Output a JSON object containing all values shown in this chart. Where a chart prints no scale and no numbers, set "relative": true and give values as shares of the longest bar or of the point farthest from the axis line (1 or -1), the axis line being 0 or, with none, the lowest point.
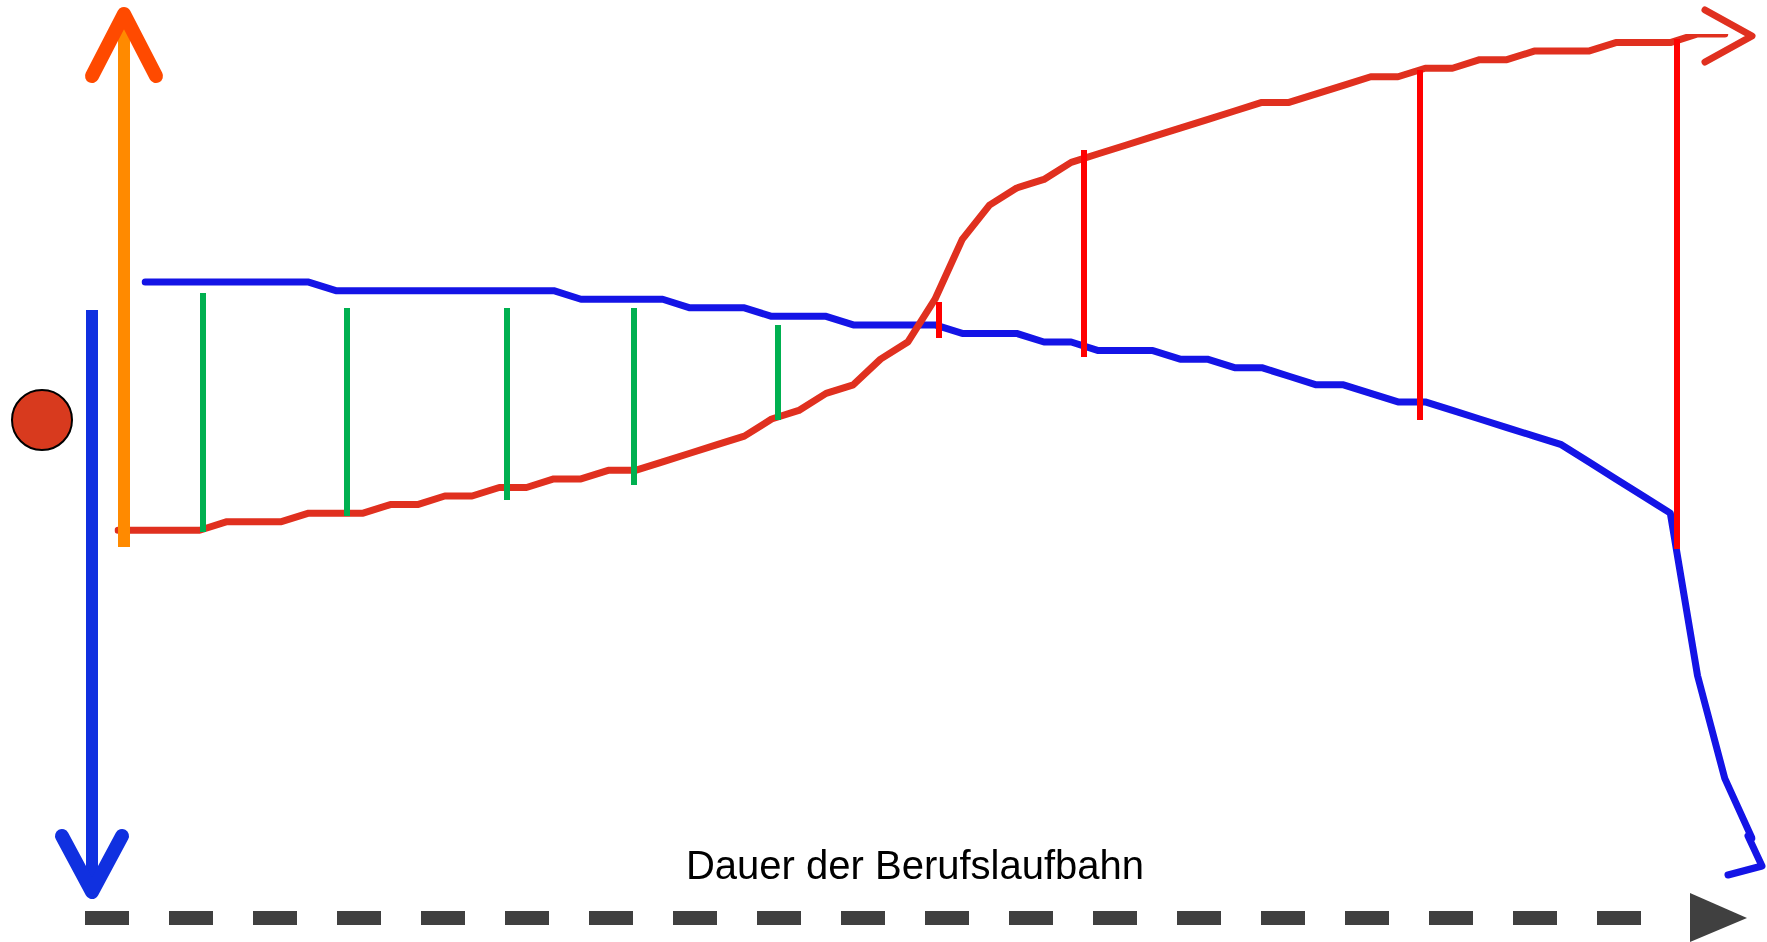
{
  "chart_data": {
    "type": "line",
    "relative": true,
    "xlabel": "Dauer der Berufslaufbahn",
    "legend": false,
    "grid": false,
    "marker": "none",
    "line_style": "solid",
    "categories": [
      null,
      null,
      null,
      null,
      null,
      null,
      null,
      null,
      null,
      null,
      null,
      null,
      null,
      null,
      null,
      null,
      null,
      null,
      null,
      null,
      null,
      null,
      null,
      null,
      null,
      null,
      null,
      null,
      null,
      null,
      null,
      null,
      null,
      null,
      null,
      null,
      null,
      null,
      null,
      null,
      null,
      null,
      null,
      null,
      null,
      null,
      null,
      null,
      null,
      null,
      null,
      null,
      null,
      null,
      null,
      null,
      null,
      null,
      null,
      null,
      null
    ],
    "series": [
      {
        "color": "#e0301f",
        "values": [
          0.42,
          0.42,
          0.42,
          0.42,
          0.43,
          0.43,
          0.43,
          0.44,
          0.44,
          0.44,
          0.45,
          0.45,
          0.46,
          0.46,
          0.47,
          0.47,
          0.48,
          0.48,
          0.49,
          0.49,
          0.5,
          0.51,
          0.52,
          0.53,
          0.55,
          0.56,
          0.58,
          0.59,
          0.62,
          0.64,
          0.69,
          0.76,
          0.8,
          0.82,
          0.83,
          0.85,
          0.86,
          0.87,
          0.88,
          0.89,
          0.9,
          0.91,
          0.92,
          0.92,
          0.93,
          0.94,
          0.95,
          0.95,
          0.96,
          0.96,
          0.97,
          0.97,
          0.98,
          0.98,
          0.98,
          0.99,
          0.99,
          0.99,
          1.0,
          1.0,
          null
        ]
      },
      {
        "color": "#1414e6",
        "values": [
          null,
          0.71,
          0.71,
          0.71,
          0.71,
          0.71,
          0.71,
          0.71,
          0.7,
          0.7,
          0.7,
          0.7,
          0.7,
          0.7,
          0.7,
          0.7,
          0.7,
          0.69,
          0.69,
          0.69,
          0.69,
          0.68,
          0.68,
          0.68,
          0.67,
          0.67,
          0.67,
          0.66,
          0.66,
          0.66,
          0.66,
          0.65,
          0.65,
          0.65,
          0.64,
          0.64,
          0.63,
          0.63,
          0.63,
          0.62,
          0.62,
          0.61,
          0.61,
          0.6,
          0.59,
          0.59,
          0.58,
          0.57,
          0.57,
          0.56,
          0.55,
          0.54,
          0.53,
          0.52,
          0.5,
          0.48,
          0.46,
          0.44,
          0.25,
          0.13,
          0.06
        ]
      }
    ]
  }
}
